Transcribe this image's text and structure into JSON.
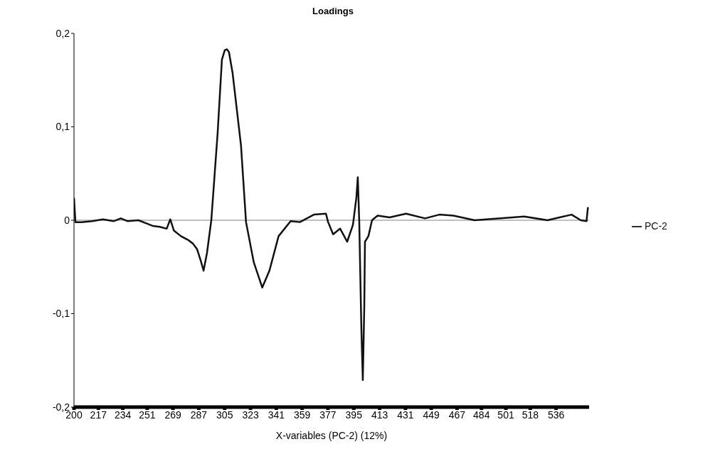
{
  "chart_data": {
    "type": "line",
    "title": "Loadings",
    "xlabel": "X-variables (PC-2) (12%)",
    "xlim": [
      200,
      559
    ],
    "xticks": [
      200,
      217,
      234,
      251,
      269,
      287,
      305,
      323,
      341,
      359,
      377,
      395,
      413,
      431,
      449,
      467,
      484,
      501,
      518,
      536
    ],
    "ylim": [
      -0.2,
      0.2
    ],
    "yticks": [
      {
        "value": -0.2,
        "label": "-0,2"
      },
      {
        "value": -0.1,
        "label": "-0,1"
      },
      {
        "value": 0,
        "label": "0"
      },
      {
        "value": 0.1,
        "label": "0,1"
      },
      {
        "value": 0.2,
        "label": "0,2"
      }
    ],
    "grid": false,
    "legend": "right",
    "marker": "none",
    "line_style": "solid",
    "ref_lines": [
      {
        "axis": "y",
        "value": 0,
        "color": "#808080"
      }
    ],
    "series": [
      {
        "name": "PC-2",
        "color": "#111111",
        "x": [
          200,
          201,
          205.4,
          212.8,
          220.2,
          227.6,
          232.6,
          237.5,
          244.9,
          249.8,
          254.8,
          259.7,
          264.6,
          267.1,
          269.6,
          274.5,
          279.4,
          282.9,
          285.8,
          288.3,
          290.3,
          292.7,
          295.7,
          300.1,
          303.1,
          305.1,
          306.6,
          308.0,
          310.5,
          316.4,
          319.9,
          325.3,
          331.2,
          336.2,
          342.6,
          351.0,
          357.4,
          367.2,
          375.6,
          377.1,
          380.6,
          385.5,
          390.4,
          394.4,
          396.8,
          397.8,
          398.8,
          400.3,
          401.3,
          402.3,
          402.8,
          405.2,
          407.7,
          411.6,
          420.0,
          431.4,
          444.7,
          454.6,
          464.4,
          479.2,
          497.5,
          513.8,
          530.0,
          538.4,
          546.8,
          553.2,
          557.2,
          558.2
        ],
        "values": [
          0.024,
          -0.002,
          -0.002,
          -0.001,
          0.001,
          -0.001,
          0.002,
          -0.001,
          0,
          -0.003,
          -0.006,
          -0.007,
          -0.009,
          0.001,
          -0.011,
          -0.017,
          -0.021,
          -0.025,
          -0.031,
          -0.043,
          -0.054,
          -0.035,
          0,
          0.093,
          0.172,
          0.182,
          0.183,
          0.18,
          0.158,
          0.08,
          -0.002,
          -0.045,
          -0.072,
          -0.054,
          -0.017,
          -0.001,
          -0.002,
          0.006,
          0.007,
          -0.002,
          -0.015,
          -0.009,
          -0.023,
          -0.005,
          0.024,
          0.046,
          -0.001,
          -0.117,
          -0.171,
          -0.094,
          -0.023,
          -0.017,
          0,
          0.005,
          0.003,
          0.007,
          0.002,
          0.006,
          0.005,
          0,
          0.002,
          0.004,
          0,
          0.003,
          0.006,
          0,
          -0.001,
          0.014
        ]
      }
    ]
  }
}
